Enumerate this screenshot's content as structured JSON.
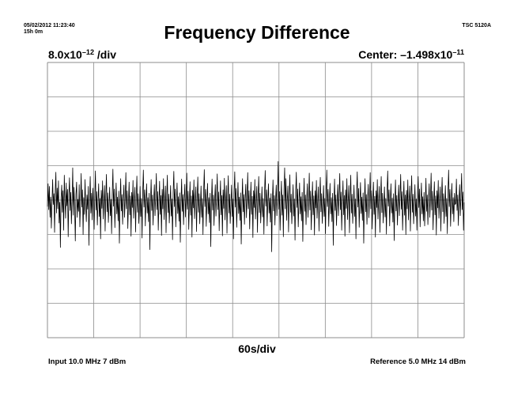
{
  "header": {
    "timestamp": "05/02/2012 11:23:40",
    "duration": "15h 0m",
    "instrument": "TSC 5120A"
  },
  "scale": {
    "prefix": "8.0x10",
    "exponent": "–12",
    "suffix": " /div"
  },
  "center": {
    "prefix": "Center: –1.498x10",
    "exponent": "–11"
  },
  "footer": {
    "input": "Input 10.0 MHz 7 dBm",
    "reference": "Reference 5.0 MHz 14 dBm"
  },
  "colors": {
    "grid": "#8c8c8c",
    "trace": "#000000",
    "background": "#ffffff"
  },
  "chart_data": {
    "type": "line",
    "title": "Frequency Difference",
    "xlabel": "60s/div",
    "x_divisions": 9,
    "y_divisions": 8,
    "x_units_per_div": 60,
    "y_units_per_div": 8e-12,
    "y_center": -1.498e-11,
    "xlim": [
      0,
      540
    ],
    "ylim": [
      -4.698e-11,
      1.702e-11
    ],
    "grid": true,
    "series": [
      {
        "x_step": 1,
        "values": [
          -1.65e-11,
          -1.12e-11,
          -1.72e-11,
          -1.18e-11,
          -1.9e-11,
          -1.43e-11,
          -2.15e-11,
          -1.58e-11,
          -1.02e-11,
          -1.6e-11,
          -1.35e-11,
          -2.25e-11,
          -1.3e-11,
          -8.5e-12,
          -1.8e-11,
          -1.22e-11,
          -1.7e-11,
          -1.05e-11,
          -2.03e-11,
          -1.55e-11,
          -2.6e-11,
          -1.45e-11,
          -1.15e-11,
          -1.78e-11,
          -1.28e-11,
          -2.2e-11,
          -9.2e-12,
          -1.5e-11,
          -1.92e-11,
          -1.1e-11,
          -1.63e-11,
          -1.25e-11,
          -2.35e-11,
          -1.4e-11,
          -9.8e-12,
          -1.74e-11,
          -1.32e-11,
          -2.05e-11,
          -1.53e-11,
          -7.5e-12,
          -1.85e-11,
          -1.2e-11,
          -1.68e-11,
          -2.45e-11,
          -1.36e-11,
          -1.08e-11,
          -1.9e-11,
          -1.48e-11,
          -1.76e-11,
          -1.14e-11,
          -2.12e-11,
          -1.57e-11,
          -8.8e-12,
          -1.66e-11,
          -1.26e-11,
          -2.3e-11,
          -1.44e-11,
          -1.83e-11,
          -1.02e-11,
          -1.62e-11,
          -2e-11,
          -1.38e-11,
          -1.71e-11,
          -1.18e-11,
          -2.55e-11,
          -1.5e-11,
          -9.5e-12,
          -1.8e-11,
          -1.34e-11,
          -1.96e-11,
          -1.22e-11,
          -1.59e-11,
          -2.18e-11,
          -1.42e-11,
          -8.2e-12,
          -1.73e-11,
          -1.3e-11,
          -2.08e-11,
          -1.54e-11,
          -1.12e-11,
          -1.88e-11,
          -1.46e-11,
          -2.4e-11,
          -1.27e-11,
          -1.69e-11,
          -1.05e-11,
          -1.94e-11,
          -1.52e-11,
          -1.16e-11,
          -2.22e-11,
          -1.4e-11,
          -9e-12,
          -1.77e-11,
          -1.33e-11,
          -2.02e-11,
          -1.6e-11,
          -1.2e-11,
          -1.86e-11,
          -1.48e-11,
          -2.28e-11,
          -1.36e-11,
          -7.8e-12,
          -1.64e-11,
          -1.24e-11,
          -2.14e-11,
          -1.55e-11,
          -1.1e-11,
          -1.82e-11,
          -1.43e-11,
          -1.98e-11,
          -1.29e-11,
          -2.5e-11,
          -1.58e-11,
          -1e-11,
          -1.75e-11,
          -1.37e-11,
          -2.06e-11,
          -1.5e-11,
          -1.15e-11,
          -1.9e-11,
          -1.45e-11,
          -8.6e-12,
          -1.7e-11,
          -1.28e-11,
          -2.16e-11,
          -1.56e-11,
          -1.08e-11,
          -1.84e-11,
          -1.4e-11,
          -2.34e-11,
          -1.32e-11,
          -1.67e-11,
          -1.04e-11,
          -1.92e-11,
          -1.5e-11,
          -1.2e-11,
          -2.24e-11,
          -1.42e-11,
          -9.4e-12,
          -1.78e-11,
          -1.35e-11,
          -2.04e-11,
          -1.62e-11,
          -1.18e-11,
          -1.88e-11,
          -1.46e-11,
          -2.38e-11,
          -1.3e-11,
          -8e-12,
          -1.66e-11,
          -1.26e-11,
          -2.1e-11,
          -1.53e-11,
          -1.12e-11,
          -1.8e-11,
          -1.44e-11,
          -2e-11,
          -1.34e-11,
          -2.65e-11,
          -1.57e-11,
          -1.02e-11,
          -1.74e-11,
          -1.38e-11,
          -2.08e-11,
          -1.48e-11,
          -1.14e-11,
          -1.86e-11,
          -1.41e-11,
          -8.8e-12,
          -1.72e-11,
          -1.3e-11,
          -2.2e-11,
          -1.55e-11,
          -1.06e-11,
          -1.83e-11,
          -1.39e-11,
          -2.32e-11,
          -1.25e-11,
          -1.7e-11,
          -1e-11,
          -1.95e-11,
          -1.51e-11,
          -1.17e-11,
          -2.26e-11,
          -1.43e-11,
          -9.2e-12,
          -1.79e-11,
          -1.36e-11,
          -2.03e-11,
          -1.61e-11,
          -1.16e-11,
          -1.87e-11,
          -1.47e-11,
          -2.42e-11,
          -1.31e-11,
          -8.3e-12,
          -1.65e-11,
          -1.24e-11,
          -2.12e-11,
          -1.54e-11,
          -1.1e-11,
          -1.81e-11,
          -1.42e-11,
          -1.99e-11,
          -1.33e-11,
          -2.48e-11,
          -1.59e-11,
          -1.01e-11,
          -1.76e-11,
          -1.37e-11,
          -2.07e-11,
          -1.49e-11,
          -1.13e-11,
          -1.89e-11,
          -1.44e-11,
          -8.7e-12,
          -1.71e-11,
          -1.29e-11,
          -2.18e-11,
          -1.56e-11,
          -1.07e-11,
          -1.85e-11,
          -1.4e-11,
          -2.36e-11,
          -1.27e-11,
          -1.68e-11,
          -1.03e-11,
          -1.93e-11,
          -1.5e-11,
          -1.19e-11,
          -2.23e-11,
          -1.43e-11,
          -9.6e-12,
          -1.78e-11,
          -1.35e-11,
          -2.05e-11,
          -1.6e-11,
          -1.17e-11,
          -1.9e-11,
          -1.46e-11,
          -2.3e-11,
          -1.3e-11,
          -7.9e-12,
          -1.65e-11,
          -1.25e-11,
          -2.11e-11,
          -1.53e-11,
          -1.11e-11,
          -1.82e-11,
          -1.44e-11,
          -2.02e-11,
          -1.34e-11,
          -2.58e-11,
          -1.58e-11,
          -1.01e-11,
          -1.73e-11,
          -1.38e-11,
          -2.09e-11,
          -1.49e-11,
          -1.14e-11,
          -1.87e-11,
          -1.42e-11,
          -8.9e-12,
          -1.72e-11,
          -1.31e-11,
          -2.21e-11,
          -1.55e-11,
          -1.05e-11,
          -1.84e-11,
          -1.39e-11,
          -2.33e-11,
          -1.26e-11,
          -1.69e-11,
          -9.9e-12,
          -1.96e-11,
          -1.52e-11,
          -1.16e-11,
          -2.27e-11,
          -1.44e-11,
          -9.3e-12,
          -1.8e-11,
          -1.36e-11,
          -2.04e-11,
          -1.62e-11,
          -1.15e-11,
          -1.88e-11,
          -1.47e-11,
          -2.4e-11,
          -1.32e-11,
          -8.4e-12,
          -1.66e-11,
          -1.23e-11,
          -2.13e-11,
          -1.54e-11,
          -1.09e-11,
          -1.81e-11,
          -1.43e-11,
          -1.97e-11,
          -1.33e-11,
          -2.52e-11,
          -1.6e-11,
          -1e-11,
          -1.77e-11,
          -1.37e-11,
          -2.06e-11,
          -1.48e-11,
          -1.13e-11,
          -1.91e-11,
          -1.45e-11,
          -8.6e-12,
          -1.7e-11,
          -1.28e-11,
          -2.17e-11,
          -1.57e-11,
          -1.08e-11,
          -1.83e-11,
          -1.41e-11,
          -2.37e-11,
          -1.28e-11,
          -1.67e-11,
          -1.02e-11,
          -1.94e-11,
          -1.51e-11,
          -1.18e-11,
          -2.25e-11,
          -1.42e-11,
          -9.5e-12,
          -1.79e-11,
          -1.34e-11,
          -2.03e-11,
          -1.61e-11,
          -1.19e-11,
          -1.89e-11,
          -1.46e-11,
          -2.29e-11,
          -1.31e-11,
          -8.1e-12,
          -1.64e-11,
          -1.26e-11,
          -2.1e-11,
          -1.52e-11,
          -1.12e-11,
          -1.8e-11,
          -1.45e-11,
          -2.01e-11,
          -1.35e-11,
          -2.7e-11,
          -1.57e-11,
          -1.03e-11,
          -1.75e-11,
          -1.39e-11,
          -2.08e-11,
          -1.5e-11,
          -1.15e-11,
          -1.86e-11,
          -1.41e-11,
          -6e-12,
          -1.71e-11,
          -1.3e-11,
          -2.2e-11,
          -1.56e-11,
          -1.06e-11,
          -1.85e-11,
          -1.38e-11,
          -2.35e-11,
          -1.27e-11,
          -7.5e-12,
          -1.7e-11,
          -1e-11,
          -1.97e-11,
          -1.5e-11,
          -1.17e-11,
          -2.24e-11,
          -1.43e-11,
          -9.1e-12,
          -1.78e-11,
          -1.36e-11,
          -2.05e-11,
          -1.63e-11,
          -1.14e-11,
          -1.87e-11,
          -1.47e-11,
          -2.43e-11,
          -1.33e-11,
          -8.5e-12,
          -1.67e-11,
          -1.24e-11,
          -2.12e-11,
          -1.55e-11,
          -1.1e-11,
          -1.82e-11,
          -1.42e-11,
          -1.98e-11,
          -1.32e-11,
          -2.46e-11,
          -1.59e-11,
          -9.9e-12,
          -1.76e-11,
          -1.38e-11,
          -2.07e-11,
          -1.49e-11,
          -1.12e-11,
          -1.9e-11,
          -1.44e-11,
          -8.7e-12,
          -1.73e-11,
          -1.29e-11,
          -2.19e-11,
          -1.56e-11,
          -1.07e-11,
          -1.84e-11,
          -1.4e-11,
          -2.31e-11,
          -1.28e-11,
          -1.68e-11,
          -1.04e-11,
          -1.92e-11,
          -1.51e-11,
          -1.19e-11,
          -2.22e-11,
          -1.42e-11,
          -9.7e-12,
          -1.77e-11,
          -1.35e-11,
          -2.04e-11,
          -1.6e-11,
          -1.16e-11,
          -1.88e-11,
          -1.46e-11,
          -2.28e-11,
          -1.3e-11,
          -8e-12,
          -1.65e-11,
          -1.25e-11,
          -2.11e-11,
          -1.53e-11,
          -1.11e-11,
          -1.82e-11,
          -1.44e-11,
          -2e-11,
          -1.34e-11,
          -2.55e-11,
          -1.58e-11,
          -1.01e-11,
          -1.74e-11,
          -1.38e-11,
          -2.09e-11,
          -1.49e-11,
          -1.14e-11,
          -1.86e-11,
          -1.42e-11,
          -8.8e-12,
          -1.72e-11,
          -1.31e-11,
          -2.2e-11,
          -1.55e-11,
          -1.05e-11,
          -1.84e-11,
          -1.39e-11,
          -2.34e-11,
          -1.26e-11,
          -1.69e-11,
          -1e-11,
          -1.95e-11,
          -1.52e-11,
          -1.16e-11,
          -2.26e-11,
          -1.44e-11,
          -9.2e-12,
          -1.8e-11,
          -1.36e-11,
          -2.04e-11,
          -1.62e-11,
          -1.15e-11,
          -1.88e-11,
          -1.47e-11,
          -2.4e-11,
          -1.32e-11,
          -8.4e-12,
          -1.66e-11,
          -1.23e-11,
          -2.13e-11,
          -1.54e-11,
          -1.09e-11,
          -1.81e-11,
          -1.43e-11,
          -1.97e-11,
          -1.33e-11,
          -2.5e-11,
          -1.6e-11,
          -1e-11,
          -1.77e-11,
          -1.37e-11,
          -2.06e-11,
          -1.48e-11,
          -1.13e-11,
          -1.91e-11,
          -1.45e-11,
          -8.6e-12,
          -1.7e-11,
          -1.28e-11,
          -2.17e-11,
          -1.57e-11,
          -1.08e-11,
          -1.83e-11,
          -1.41e-11,
          -2.36e-11,
          -1.28e-11,
          -1.67e-11,
          -1.02e-11,
          -1.94e-11,
          -1.51e-11,
          -1.18e-11,
          -2.25e-11,
          -1.42e-11,
          -9.5e-12,
          -1.79e-11,
          -1.34e-11,
          -2.03e-11,
          -1.61e-11,
          -1.19e-11,
          -1.89e-11,
          -1.46e-11,
          -2.29e-11,
          -1.31e-11,
          -8.2e-12,
          -1.64e-11,
          -1.26e-11,
          -2.1e-11,
          -1.52e-11,
          -1.12e-11,
          -1.8e-11,
          -1.45e-11,
          -2.01e-11,
          -1.35e-11,
          -2.44e-11,
          -1.57e-11,
          -1.03e-11,
          -1.75e-11,
          -1.39e-11,
          -2.08e-11,
          -1.5e-11,
          -1.15e-11,
          -1.86e-11,
          -1.41e-11,
          -9e-12,
          -1.71e-11,
          -1.3e-11,
          -2.2e-11,
          -1.56e-11,
          -1.06e-11,
          -1.85e-11,
          -1.38e-11,
          -2.3e-11,
          -1.27e-11,
          -1.7e-11,
          -1.03e-11,
          -1.96e-11,
          -1.5e-11,
          -1.17e-11,
          -2.22e-11,
          -1.43e-11,
          -9.3e-12,
          -1.78e-11,
          -1.36e-11,
          -2.05e-11,
          -1.63e-11,
          -1.14e-11,
          -1.87e-11,
          -1.47e-11,
          -2.2e-11,
          -1.33e-11,
          -9.5e-12,
          -1.67e-11,
          -1.24e-11,
          -2.12e-11,
          -1.55e-11,
          -1.1e-11,
          -1.82e-11,
          -1.42e-11,
          -1.98e-11,
          -1.32e-11,
          -2.1e-11,
          -1.59e-11,
          -9.9e-12,
          -1.76e-11,
          -1.38e-11,
          -2.07e-11,
          -1.49e-11,
          -1.12e-11,
          -1.9e-11,
          -1.44e-11,
          -8.7e-12,
          -1.73e-11,
          -1.29e-11,
          -2.19e-11,
          -1.56e-11,
          -1.07e-11,
          -1.84e-11,
          -1.4e-11,
          -2.31e-11,
          -1.28e-11,
          -1.68e-11,
          -1.04e-11,
          -1.92e-11,
          -1.51e-11,
          -1.19e-11,
          -2.22e-11,
          -1.42e-11,
          -9.7e-12,
          -1.77e-11,
          -1.35e-11,
          -2.04e-11,
          -1.6e-11,
          -1.16e-11,
          -1.88e-11,
          -1.46e-11,
          -2.28e-11,
          -1.3e-11,
          -8e-12,
          -1.65e-11,
          -1.25e-11,
          -2.11e-11,
          -1.53e-11,
          -1.11e-11,
          -1.82e-11,
          -1.44e-11,
          -2e-11,
          -1.34e-11,
          -1.6e-11,
          -1.58e-11,
          -1.01e-11,
          -1.74e-11,
          -1.38e-11,
          -2.09e-11,
          -1.49e-11,
          -1.14e-11,
          -1.86e-11,
          -1.42e-11,
          -8.8e-12,
          -1.72e-11,
          -1.31e-11,
          -2.2e-11,
          -1.55e-11
        ]
      }
    ]
  }
}
